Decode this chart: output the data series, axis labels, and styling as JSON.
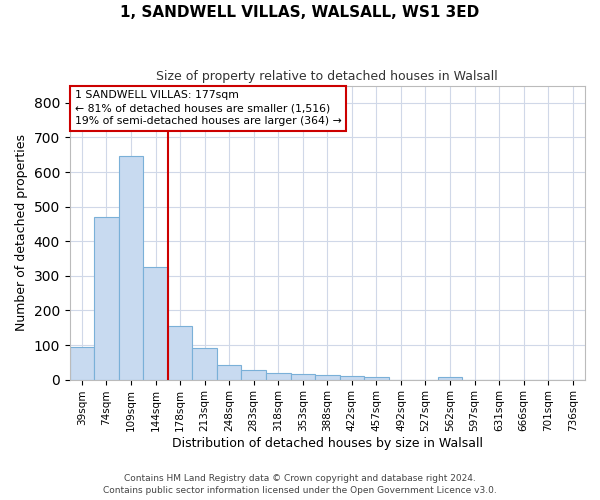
{
  "title": "1, SANDWELL VILLAS, WALSALL, WS1 3ED",
  "subtitle": "Size of property relative to detached houses in Walsall",
  "xlabel": "Distribution of detached houses by size in Walsall",
  "ylabel": "Number of detached properties",
  "categories": [
    "39sqm",
    "74sqm",
    "109sqm",
    "144sqm",
    "178sqm",
    "213sqm",
    "248sqm",
    "283sqm",
    "318sqm",
    "353sqm",
    "388sqm",
    "422sqm",
    "457sqm",
    "492sqm",
    "527sqm",
    "562sqm",
    "597sqm",
    "631sqm",
    "666sqm",
    "701sqm",
    "736sqm"
  ],
  "values": [
    95,
    470,
    645,
    325,
    155,
    90,
    42,
    28,
    20,
    16,
    13,
    10,
    7,
    0,
    0,
    8,
    0,
    0,
    0,
    0,
    0
  ],
  "bar_color": "#c8daf0",
  "bar_edge_color": "#7ab0d8",
  "vline_color": "#cc0000",
  "annotation_line1": "1 SANDWELL VILLAS: 177sqm",
  "annotation_line2": "← 81% of detached houses are smaller (1,516)",
  "annotation_line3": "19% of semi-detached houses are larger (364) →",
  "annotation_box_color": "#ffffff",
  "annotation_box_edge": "#cc0000",
  "ylim": [
    0,
    850
  ],
  "yticks": [
    0,
    100,
    200,
    300,
    400,
    500,
    600,
    700,
    800
  ],
  "footer": "Contains HM Land Registry data © Crown copyright and database right 2024.\nContains public sector information licensed under the Open Government Licence v3.0.",
  "bg_color": "#ffffff",
  "grid_color": "#d0d8e8",
  "figsize": [
    6.0,
    5.0
  ],
  "dpi": 100
}
